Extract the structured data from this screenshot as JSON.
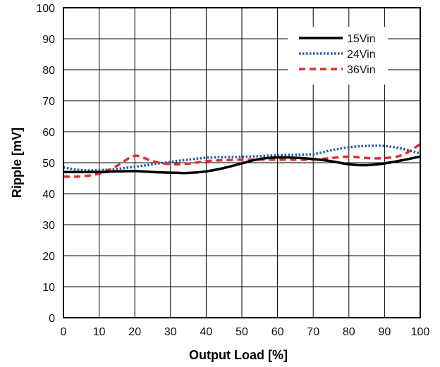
{
  "chart_data": {
    "type": "line",
    "title": "",
    "xlabel": "Output Load [%]",
    "ylabel": "Ripple [mV]",
    "xlim": [
      0,
      100
    ],
    "ylim": [
      0,
      100
    ],
    "x_ticks": [
      "0",
      "10",
      "20",
      "30",
      "40",
      "50",
      "60",
      "70",
      "80",
      "90",
      "100"
    ],
    "y_ticks": [
      "0",
      "10",
      "20",
      "30",
      "40",
      "50",
      "60",
      "70",
      "80",
      "90",
      "100"
    ],
    "grid": true,
    "legend_position": "top-right",
    "series": [
      {
        "name": "15Vin",
        "color": "#000000",
        "dash": "solid",
        "x": [
          0,
          5,
          10,
          15,
          20,
          25,
          30,
          35,
          40,
          45,
          50,
          55,
          60,
          65,
          70,
          75,
          80,
          85,
          90,
          95,
          100
        ],
        "y": [
          47,
          47,
          47,
          47.2,
          47.3,
          47.0,
          46.8,
          46.7,
          47.2,
          48.3,
          49.8,
          51.2,
          51.7,
          51.6,
          51.2,
          50.5,
          49.5,
          49.2,
          49.8,
          50.8,
          52.0
        ]
      },
      {
        "name": "24Vin",
        "color": "#2a5caa",
        "dash": "dotted",
        "x": [
          0,
          5,
          10,
          15,
          20,
          25,
          30,
          35,
          40,
          45,
          50,
          55,
          60,
          65,
          70,
          75,
          80,
          85,
          90,
          95,
          100
        ],
        "y": [
          48.5,
          47.6,
          47.6,
          48.0,
          48.7,
          49.5,
          50.3,
          51.0,
          51.6,
          51.8,
          51.9,
          52.1,
          52.4,
          52.6,
          52.8,
          54.0,
          55.0,
          55.4,
          55.4,
          54.5,
          53.0
        ]
      },
      {
        "name": "36Vin",
        "color": "#e03030",
        "dash": "dashed",
        "x": [
          0,
          5,
          10,
          15,
          20,
          25,
          30,
          35,
          40,
          45,
          50,
          55,
          60,
          65,
          70,
          75,
          80,
          85,
          90,
          95,
          100
        ],
        "y": [
          45.5,
          45.6,
          46.5,
          49.0,
          52.2,
          50.5,
          49.5,
          49.7,
          50.5,
          50.8,
          51.0,
          51.0,
          51.0,
          51.0,
          51.0,
          51.5,
          52.0,
          51.5,
          51.5,
          52.5,
          56.0
        ]
      }
    ]
  }
}
